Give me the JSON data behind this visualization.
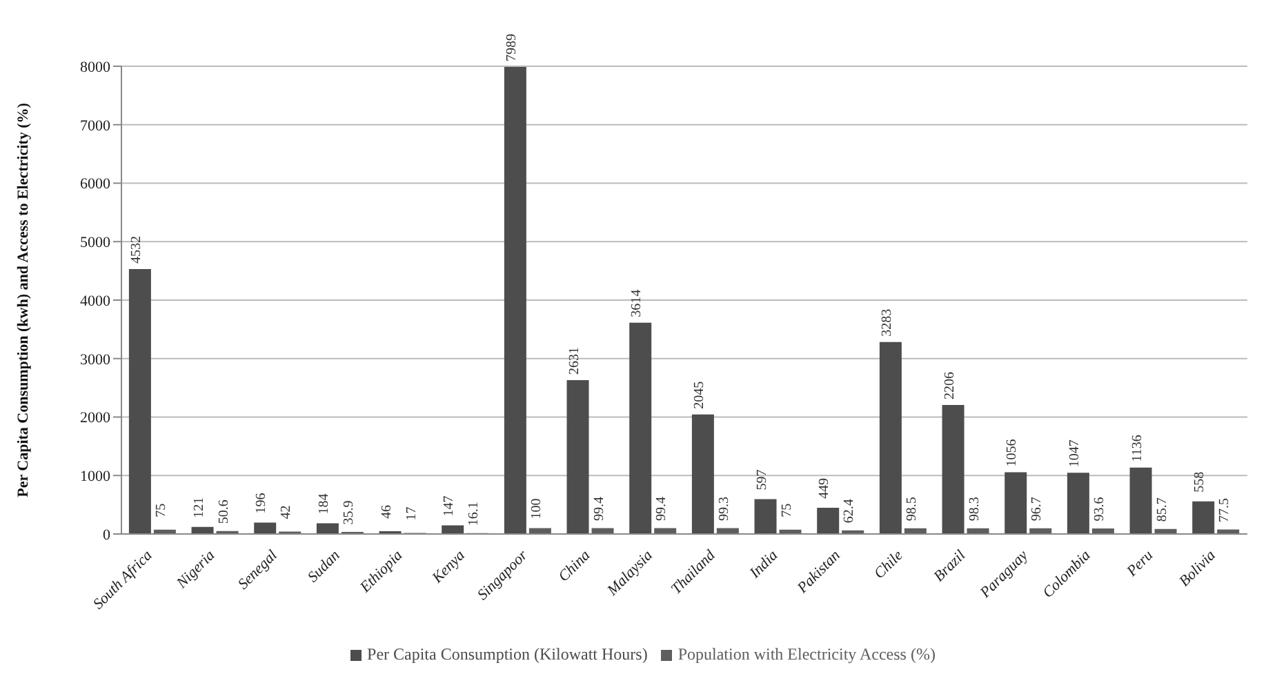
{
  "chart_data": {
    "type": "bar",
    "ylabel": "Per Capita Consumption (kwh) and Access to Electricity (%)",
    "categories": [
      "South Africa",
      "Nigeria",
      "Senegal",
      "Sudan",
      "Ethiopia",
      "Kenya",
      "Singapoor",
      "China",
      "Malaysia",
      "Thailand",
      "India",
      "Pakistan",
      "Chile",
      "Brazil",
      "Paraguay",
      "Colombia",
      "Peru",
      "Bolivia"
    ],
    "series": [
      {
        "name": "Per Capita Consumption (Kilowatt Hours)",
        "color": "#4d4d4d",
        "values": [
          4532,
          121,
          196,
          184,
          46,
          147,
          7989,
          2631,
          3614,
          2045,
          597,
          449,
          3283,
          2206,
          1056,
          1047,
          1136,
          558
        ]
      },
      {
        "name": "Population with Electricity Access (%)",
        "color": "#5e5e5e",
        "values": [
          75,
          50.6,
          42,
          35.9,
          17,
          16.1,
          100,
          99.4,
          99.4,
          99.3,
          75,
          62.4,
          98.5,
          98.3,
          96.7,
          93.6,
          85.7,
          77.5
        ]
      }
    ],
    "ylim": [
      0,
      8000
    ],
    "yticks": [
      0,
      1000,
      2000,
      3000,
      4000,
      5000,
      6000,
      7000,
      8000
    ],
    "grid": "y",
    "legend": "bottom",
    "data_labels": true
  }
}
